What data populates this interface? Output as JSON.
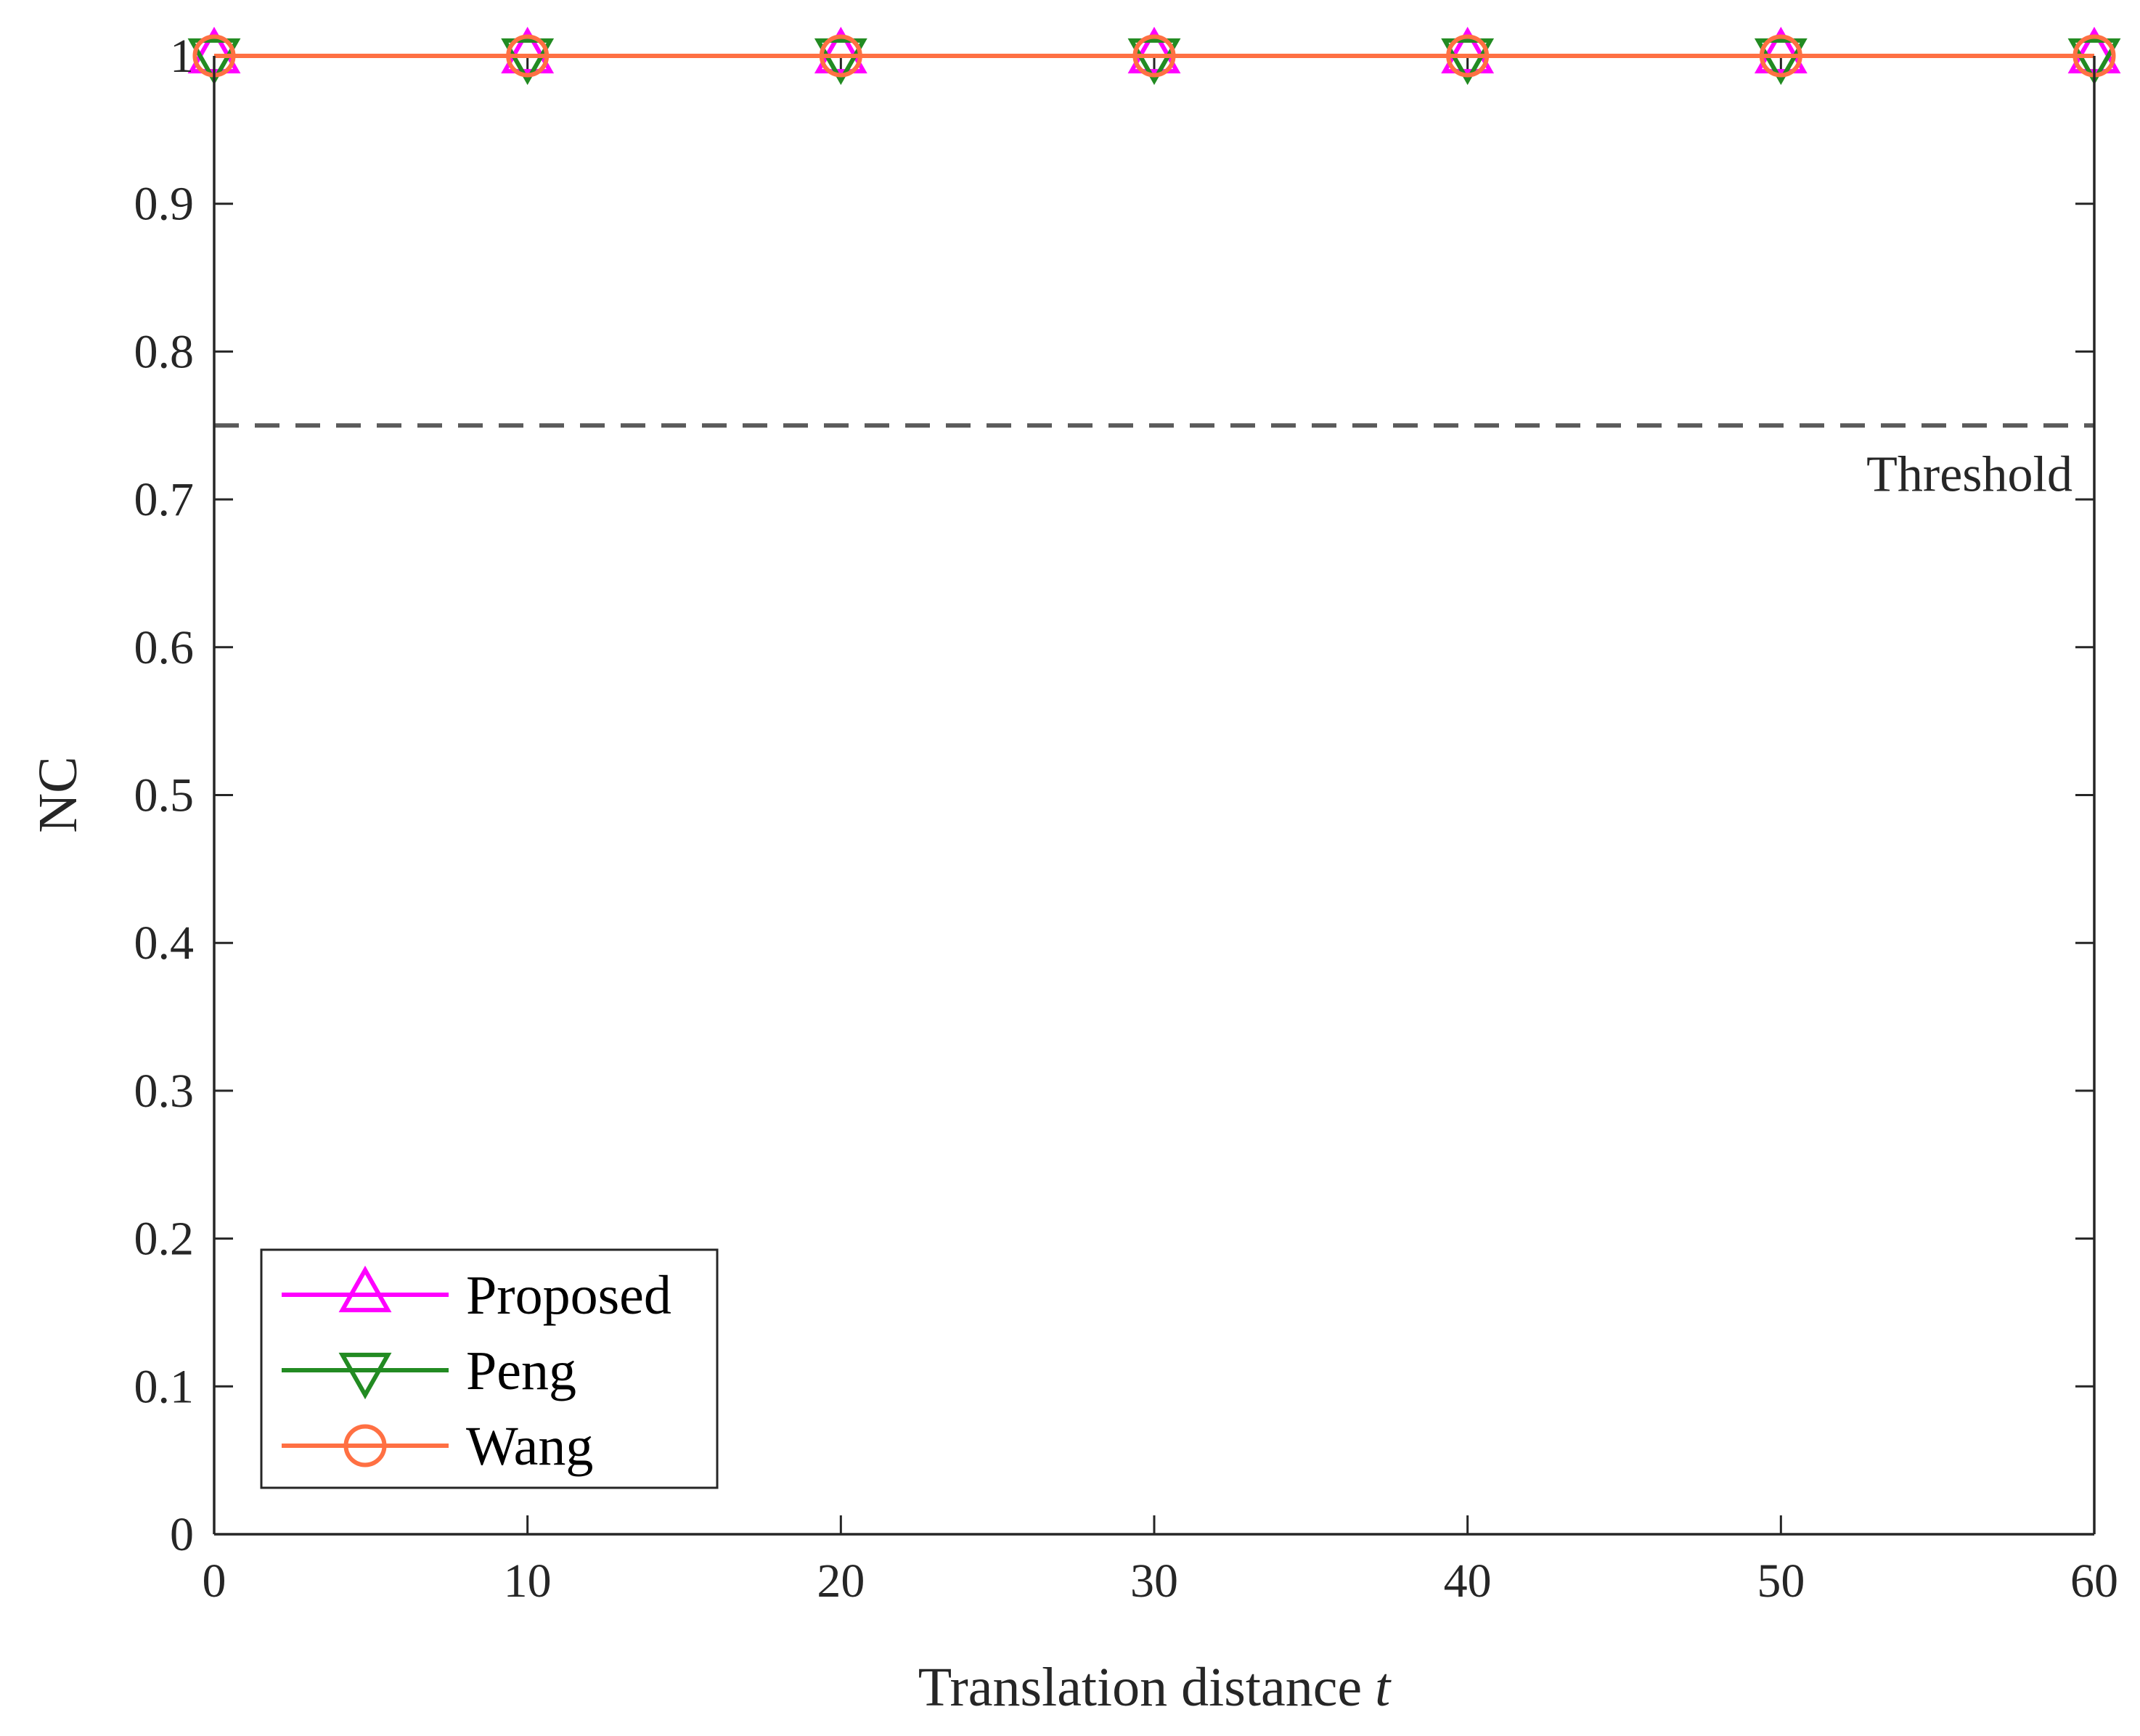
{
  "chart_data": {
    "type": "line",
    "xlabel": "Translation distance",
    "xlabel_var": "t",
    "ylabel": "NC",
    "xlim": [
      0,
      60
    ],
    "ylim": [
      0,
      1
    ],
    "x_ticks": [
      0,
      10,
      20,
      30,
      40,
      50,
      60
    ],
    "y_ticks": [
      0,
      0.1,
      0.2,
      0.3,
      0.4,
      0.5,
      0.6,
      0.7,
      0.8,
      0.9,
      1
    ],
    "x_tick_labels": [
      "0",
      "10",
      "20",
      "30",
      "40",
      "50",
      "60"
    ],
    "y_tick_labels": [
      "0",
      "0.1",
      "0.2",
      "0.3",
      "0.4",
      "0.5",
      "0.6",
      "0.7",
      "0.8",
      "0.9",
      "1"
    ],
    "grid": false,
    "legend_position": "bottom-left",
    "x": [
      0,
      10,
      20,
      30,
      40,
      50,
      60
    ],
    "series": [
      {
        "name": "Proposed",
        "values": [
          1,
          1,
          1,
          1,
          1,
          1,
          1
        ],
        "color": "#ff00ff",
        "marker": "triangle-up"
      },
      {
        "name": "Peng",
        "values": [
          1,
          1,
          1,
          1,
          1,
          1,
          1
        ],
        "color": "#228b22",
        "marker": "triangle-down"
      },
      {
        "name": "Wang",
        "values": [
          1,
          1,
          1,
          1,
          1,
          1,
          1
        ],
        "color": "#ff7043",
        "marker": "circle"
      }
    ],
    "threshold": {
      "value": 0.75,
      "label": "Threshold",
      "color": "#5a5a5a"
    }
  }
}
